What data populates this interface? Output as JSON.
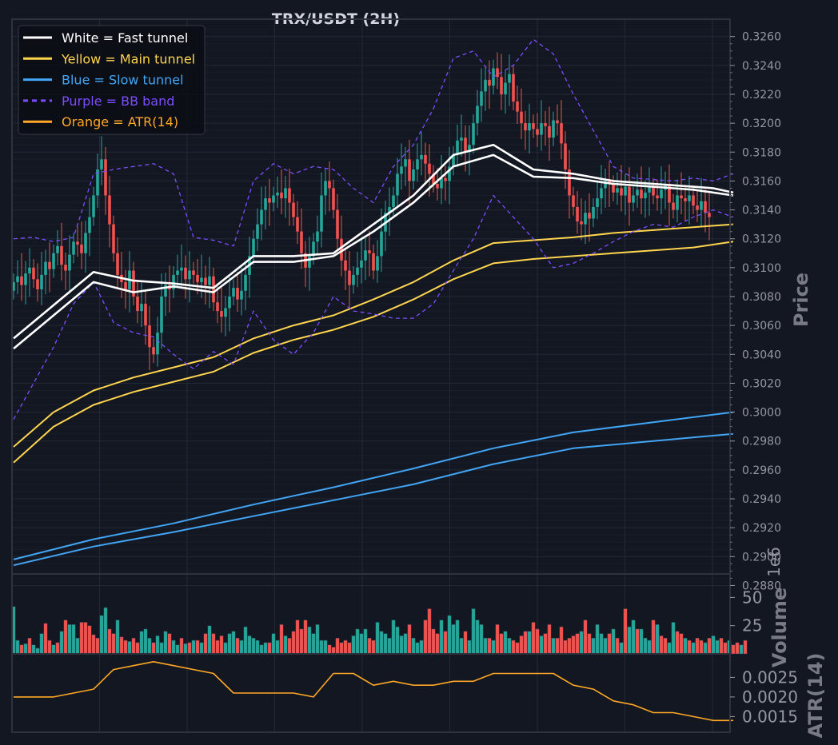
{
  "chart_data": {
    "title": "TRX/USDT (2H)",
    "type": "candlestick",
    "price_panel": {
      "ylabel": "Price",
      "ylim": [
        0.2888,
        0.3272
      ],
      "yticks": [
        "0.3260",
        "0.3240",
        "0.3220",
        "0.3200",
        "0.3180",
        "0.3160",
        "0.3140",
        "0.3120",
        "0.3100",
        "0.3080",
        "0.3060",
        "0.3040",
        "0.3020",
        "0.3000",
        "0.2980",
        "0.2960",
        "0.2940",
        "0.2920",
        "0.2900",
        "0.2880"
      ],
      "close_series": [
        0.309,
        0.3094,
        0.3088,
        0.3096,
        0.31,
        0.3092,
        0.3085,
        0.3095,
        0.3104,
        0.3099,
        0.311,
        0.3115,
        0.3102,
        0.3098,
        0.3109,
        0.3118,
        0.3116,
        0.311,
        0.3124,
        0.3135,
        0.315,
        0.3168,
        0.3175,
        0.315,
        0.313,
        0.311,
        0.3095,
        0.309,
        0.3085,
        0.3098,
        0.308,
        0.307,
        0.3075,
        0.306,
        0.3045,
        0.304,
        0.3055,
        0.308,
        0.3088,
        0.3085,
        0.3095,
        0.3098,
        0.31,
        0.3092,
        0.3098,
        0.3095,
        0.309,
        0.3093,
        0.3088,
        0.3094,
        0.3076,
        0.307,
        0.3066,
        0.3072,
        0.308,
        0.3086,
        0.3078,
        0.3084,
        0.3095,
        0.3108,
        0.312,
        0.313,
        0.314,
        0.3148,
        0.3145,
        0.315,
        0.3152,
        0.3148,
        0.3155,
        0.3145,
        0.3135,
        0.3125,
        0.311,
        0.31,
        0.3108,
        0.3118,
        0.3125,
        0.315,
        0.316,
        0.3155,
        0.314,
        0.312,
        0.3105,
        0.3098,
        0.3088,
        0.3095,
        0.31,
        0.3105,
        0.3112,
        0.311,
        0.3098,
        0.3108,
        0.3125,
        0.3138,
        0.3142,
        0.315,
        0.3165,
        0.317,
        0.3175,
        0.316,
        0.3168,
        0.3175,
        0.3178,
        0.3172,
        0.3165,
        0.3158,
        0.3155,
        0.3162,
        0.316,
        0.317,
        0.3178,
        0.3188,
        0.319,
        0.318,
        0.3185,
        0.32,
        0.3212,
        0.3222,
        0.323,
        0.3226,
        0.3238,
        0.3232,
        0.322,
        0.3228,
        0.3234,
        0.3215,
        0.3208,
        0.32,
        0.3195,
        0.32,
        0.3196,
        0.3192,
        0.32,
        0.3198,
        0.319,
        0.3202,
        0.32,
        0.3186,
        0.3168,
        0.315,
        0.3142,
        0.3132,
        0.313,
        0.3138,
        0.3134,
        0.3142,
        0.3148,
        0.3155,
        0.316,
        0.3158,
        0.3152,
        0.3155,
        0.315,
        0.3156,
        0.3145,
        0.315,
        0.3154,
        0.3148,
        0.3152,
        0.3156,
        0.315,
        0.3148,
        0.3154,
        0.3158,
        0.3145,
        0.314,
        0.315,
        0.3148,
        0.3146,
        0.315,
        0.3143,
        0.314,
        0.3146,
        0.3138,
        0.3135
      ],
      "fast_tunnel": {
        "x": [
          0,
          10,
          20,
          30,
          40,
          50,
          60,
          70,
          80,
          90,
          100,
          110,
          120,
          130,
          140,
          150,
          160,
          165,
          170,
          175,
          180
        ],
        "upper": [
          0.3051,
          0.3074,
          0.3097,
          0.3091,
          0.3089,
          0.3086,
          0.3108,
          0.3108,
          0.311,
          0.313,
          0.315,
          0.3178,
          0.3185,
          0.3168,
          0.3165,
          0.316,
          0.3158,
          0.3157,
          0.3156,
          0.3155,
          0.3152
        ],
        "lower": [
          0.3044,
          0.3067,
          0.309,
          0.3083,
          0.3087,
          0.3083,
          0.3104,
          0.3104,
          0.3108,
          0.3125,
          0.3145,
          0.317,
          0.3178,
          0.3163,
          0.3162,
          0.3158,
          0.3156,
          0.3155,
          0.3154,
          0.3152,
          0.315
        ]
      },
      "main_tunnel": {
        "x": [
          0,
          10,
          20,
          30,
          40,
          50,
          60,
          70,
          80,
          90,
          100,
          110,
          120,
          130,
          140,
          150,
          160,
          170,
          180
        ],
        "upper": [
          0.2976,
          0.3,
          0.3015,
          0.3024,
          0.3031,
          0.3038,
          0.3051,
          0.306,
          0.3067,
          0.3078,
          0.309,
          0.3105,
          0.3117,
          0.3119,
          0.3121,
          0.3124,
          0.3126,
          0.3128,
          0.313
        ],
        "lower": [
          0.2965,
          0.299,
          0.3005,
          0.3014,
          0.3021,
          0.3028,
          0.3041,
          0.305,
          0.3057,
          0.3066,
          0.3078,
          0.3092,
          0.3103,
          0.3106,
          0.3108,
          0.311,
          0.3112,
          0.3114,
          0.3118
        ]
      },
      "slow_tunnel": {
        "x": [
          0,
          20,
          40,
          60,
          80,
          100,
          120,
          140,
          160,
          180
        ],
        "upper": [
          0.2898,
          0.2912,
          0.2923,
          0.2936,
          0.2948,
          0.2961,
          0.2975,
          0.2986,
          0.2993,
          0.3
        ],
        "lower": [
          0.2894,
          0.2907,
          0.2917,
          0.2928,
          0.2939,
          0.295,
          0.2964,
          0.2975,
          0.298,
          0.2985
        ]
      },
      "bb_band": {
        "x": [
          0,
          5,
          10,
          15,
          20,
          25,
          30,
          35,
          40,
          45,
          50,
          55,
          60,
          65,
          70,
          75,
          80,
          85,
          90,
          95,
          100,
          105,
          110,
          115,
          120,
          125,
          130,
          135,
          140,
          145,
          150,
          155,
          160,
          165,
          170,
          175,
          180
        ],
        "upper": [
          0.312,
          0.3121,
          0.3118,
          0.3121,
          0.3165,
          0.3168,
          0.317,
          0.3172,
          0.3165,
          0.3121,
          0.3119,
          0.3115,
          0.316,
          0.3172,
          0.3165,
          0.317,
          0.3168,
          0.3155,
          0.3145,
          0.317,
          0.3185,
          0.321,
          0.3245,
          0.325,
          0.3232,
          0.324,
          0.3258,
          0.3248,
          0.322,
          0.3195,
          0.317,
          0.3162,
          0.3161,
          0.316,
          0.3162,
          0.316,
          0.3165
        ],
        "lower": [
          0.2995,
          0.302,
          0.3045,
          0.3075,
          0.309,
          0.3062,
          0.3055,
          0.3052,
          0.304,
          0.303,
          0.3042,
          0.3033,
          0.307,
          0.305,
          0.304,
          0.3055,
          0.308,
          0.307,
          0.3068,
          0.3065,
          0.3065,
          0.3075,
          0.3098,
          0.312,
          0.315,
          0.3135,
          0.312,
          0.31,
          0.3103,
          0.311,
          0.3118,
          0.3125,
          0.313,
          0.3128,
          0.3135,
          0.314,
          0.3135
        ]
      }
    },
    "volume_panel": {
      "ylabel": "Volume",
      "scale_note": "1e6",
      "ylim": [
        0,
        68
      ],
      "yticks": [
        "50",
        "25"
      ],
      "values": [
        42,
        12,
        8,
        9,
        14,
        8,
        5,
        18,
        27,
        12,
        8,
        10,
        20,
        30,
        26,
        26,
        14,
        28,
        28,
        25,
        17,
        14,
        34,
        41,
        22,
        18,
        30,
        15,
        12,
        11,
        14,
        10,
        20,
        22,
        14,
        10,
        16,
        10,
        20,
        18,
        12,
        8,
        14,
        9,
        10,
        12,
        12,
        10,
        18,
        25,
        18,
        12,
        16,
        10,
        18,
        20,
        14,
        12,
        24,
        16,
        14,
        12,
        8,
        10,
        10,
        18,
        12,
        26,
        16,
        14,
        20,
        30,
        22,
        30,
        24,
        18,
        26,
        12,
        12,
        8,
        6,
        14,
        10,
        12,
        10,
        16,
        22,
        18,
        22,
        14,
        12,
        28,
        20,
        18,
        14,
        30,
        24,
        16,
        18,
        26,
        14,
        10,
        12,
        30,
        40,
        22,
        18,
        30,
        20,
        34,
        26,
        30,
        14,
        20,
        12,
        40,
        30,
        26,
        14,
        14,
        12,
        26,
        18,
        20,
        14,
        12,
        10,
        16,
        20,
        20,
        28,
        22,
        16,
        18,
        26,
        14,
        14,
        24,
        12,
        14,
        16,
        18,
        20,
        30,
        18,
        14,
        26,
        18,
        14,
        18,
        22,
        14,
        10,
        40,
        24,
        30,
        22,
        22,
        14,
        12,
        30,
        26,
        16,
        14,
        10,
        28,
        20,
        18,
        14,
        12,
        10,
        14,
        12,
        10,
        14,
        16,
        12,
        14,
        10,
        12,
        8,
        10,
        8,
        12
      ],
      "up_mask": [
        1,
        1,
        0,
        1,
        0,
        1,
        1,
        1,
        0,
        0,
        1,
        0,
        1,
        0,
        1,
        1,
        1,
        0,
        0,
        0,
        0,
        0,
        1,
        1,
        0,
        0,
        1,
        0,
        0,
        1,
        0,
        0,
        1,
        1,
        1,
        0,
        1,
        1,
        1,
        0,
        1,
        1,
        0,
        1,
        0,
        1,
        0,
        1,
        0,
        1,
        0,
        0,
        0,
        1,
        1,
        1,
        0,
        1,
        1,
        1,
        1,
        1,
        1,
        1,
        0,
        1,
        1,
        0,
        1,
        0,
        0,
        0,
        0,
        0,
        1,
        1,
        1,
        1,
        1,
        0,
        0,
        0,
        0,
        0,
        0,
        1,
        1,
        1,
        1,
        0,
        0,
        1,
        1,
        1,
        1,
        1,
        1,
        1,
        1,
        0,
        1,
        1,
        1,
        0,
        0,
        0,
        0,
        1,
        0,
        1,
        1,
        1,
        1,
        0,
        1,
        1,
        1,
        1,
        1,
        0,
        1,
        0,
        0,
        1,
        1,
        0,
        0,
        0,
        0,
        1,
        0,
        0,
        1,
        0,
        0,
        1,
        0,
        0,
        0,
        0,
        0,
        0,
        1,
        0,
        0,
        1,
        1,
        1,
        1,
        0,
        1,
        0,
        1,
        0,
        1,
        1,
        0,
        1,
        1,
        1,
        0,
        1,
        0,
        0,
        1,
        1,
        0,
        0,
        1,
        0,
        1,
        0,
        0,
        1,
        0,
        1,
        1,
        0,
        0,
        1,
        0,
        0,
        1,
        0
      ]
    },
    "atr_panel": {
      "ylabel": "ATR(14)",
      "ylim": [
        0.0011,
        0.0031
      ],
      "yticks": [
        "0.0025",
        "0.0020",
        "0.0015"
      ],
      "x": [
        0,
        5,
        10,
        15,
        20,
        25,
        30,
        35,
        40,
        45,
        50,
        55,
        60,
        65,
        70,
        75,
        80,
        85,
        90,
        95,
        100,
        105,
        110,
        115,
        120,
        125,
        130,
        135,
        140,
        145,
        150,
        155,
        160,
        165,
        170,
        175,
        180
      ],
      "values": [
        0.002,
        0.002,
        0.002,
        0.0021,
        0.0022,
        0.0027,
        0.0028,
        0.0029,
        0.0028,
        0.0027,
        0.0026,
        0.0021,
        0.0021,
        0.0021,
        0.0021,
        0.002,
        0.0026,
        0.0026,
        0.0023,
        0.0024,
        0.0023,
        0.0023,
        0.0024,
        0.0024,
        0.0026,
        0.0026,
        0.0026,
        0.0026,
        0.0023,
        0.0022,
        0.0019,
        0.0018,
        0.0016,
        0.0016,
        0.0015,
        0.0014,
        0.0014
      ]
    }
  },
  "legend": [
    {
      "label": "White = Fast tunnel",
      "color": "#ffffff",
      "dash": false
    },
    {
      "label": "Yellow = Main tunnel",
      "color": "#ffd54f",
      "dash": false
    },
    {
      "label": "Blue = Slow tunnel",
      "color": "#42a5f5",
      "dash": false
    },
    {
      "label": "Purple = BB band",
      "color": "#7c4dff",
      "dash": true
    },
    {
      "label": "Orange = ATR(14)",
      "color": "#ffa726",
      "dash": false
    }
  ],
  "colors": {
    "up": "#26a69a",
    "down": "#ef5350",
    "fast": "#ffffff",
    "main": "#ffd54f",
    "slow": "#42a5f5",
    "bb": "#7c4dff",
    "atr": "#ffa726"
  }
}
